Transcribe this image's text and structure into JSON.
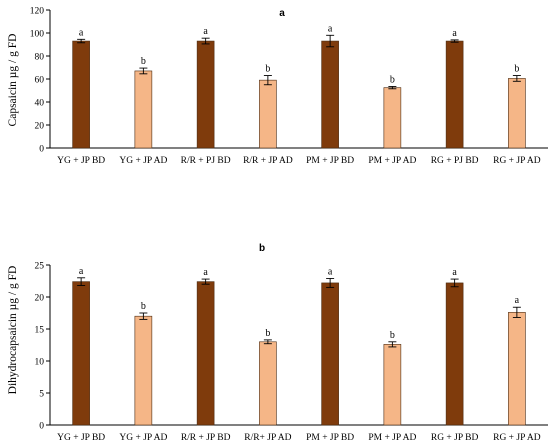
{
  "colors": {
    "BD": "#7f3b0c",
    "AD": "#f5b687",
    "bar_edge": "#4a2a10",
    "axis": "#000000"
  },
  "chart_data": [
    {
      "type": "bar",
      "panel_label": "a",
      "ylabel": "Capsaicin µg / g FD",
      "ylim": [
        0,
        120
      ],
      "yticks": [
        0,
        20,
        40,
        60,
        80,
        100,
        120
      ],
      "categories": [
        "YG + JP BD",
        "YG + JP AD",
        "R/R + PJ BD",
        "R/R + JP AD",
        "PM + JP BD",
        "PM + JP AD",
        "RG + PJ BD",
        "RG + JP AD"
      ],
      "values": [
        93,
        67,
        93,
        59,
        93,
        52.5,
        93,
        60.5
      ],
      "errors": [
        1.5,
        2.5,
        2.5,
        4,
        5,
        1,
        1,
        2.5
      ],
      "letters": [
        "a",
        "b",
        "a",
        "b",
        "a",
        "b",
        "a",
        "b"
      ],
      "grid": false
    },
    {
      "type": "bar",
      "panel_label": "b",
      "ylabel": "Dihydrocapsaicin µg / g FD",
      "ylim": [
        0,
        25
      ],
      "yticks": [
        0,
        5,
        10,
        15,
        20,
        25
      ],
      "categories": [
        "YG + JP BD",
        "YG + JP AD",
        "R/R + JP BD",
        "R/R+ JP AD",
        "PM + JP BD",
        "PM + JP AD",
        "RG + JP BD",
        "RG + JP AD"
      ],
      "values": [
        22.4,
        17,
        22.4,
        13,
        22.2,
        12.6,
        22.2,
        17.6
      ],
      "errors": [
        0.6,
        0.5,
        0.4,
        0.3,
        0.7,
        0.4,
        0.6,
        0.8
      ],
      "letters": [
        "a",
        "b",
        "a",
        "b",
        "a",
        "b",
        "a",
        "a"
      ],
      "grid": false
    }
  ]
}
